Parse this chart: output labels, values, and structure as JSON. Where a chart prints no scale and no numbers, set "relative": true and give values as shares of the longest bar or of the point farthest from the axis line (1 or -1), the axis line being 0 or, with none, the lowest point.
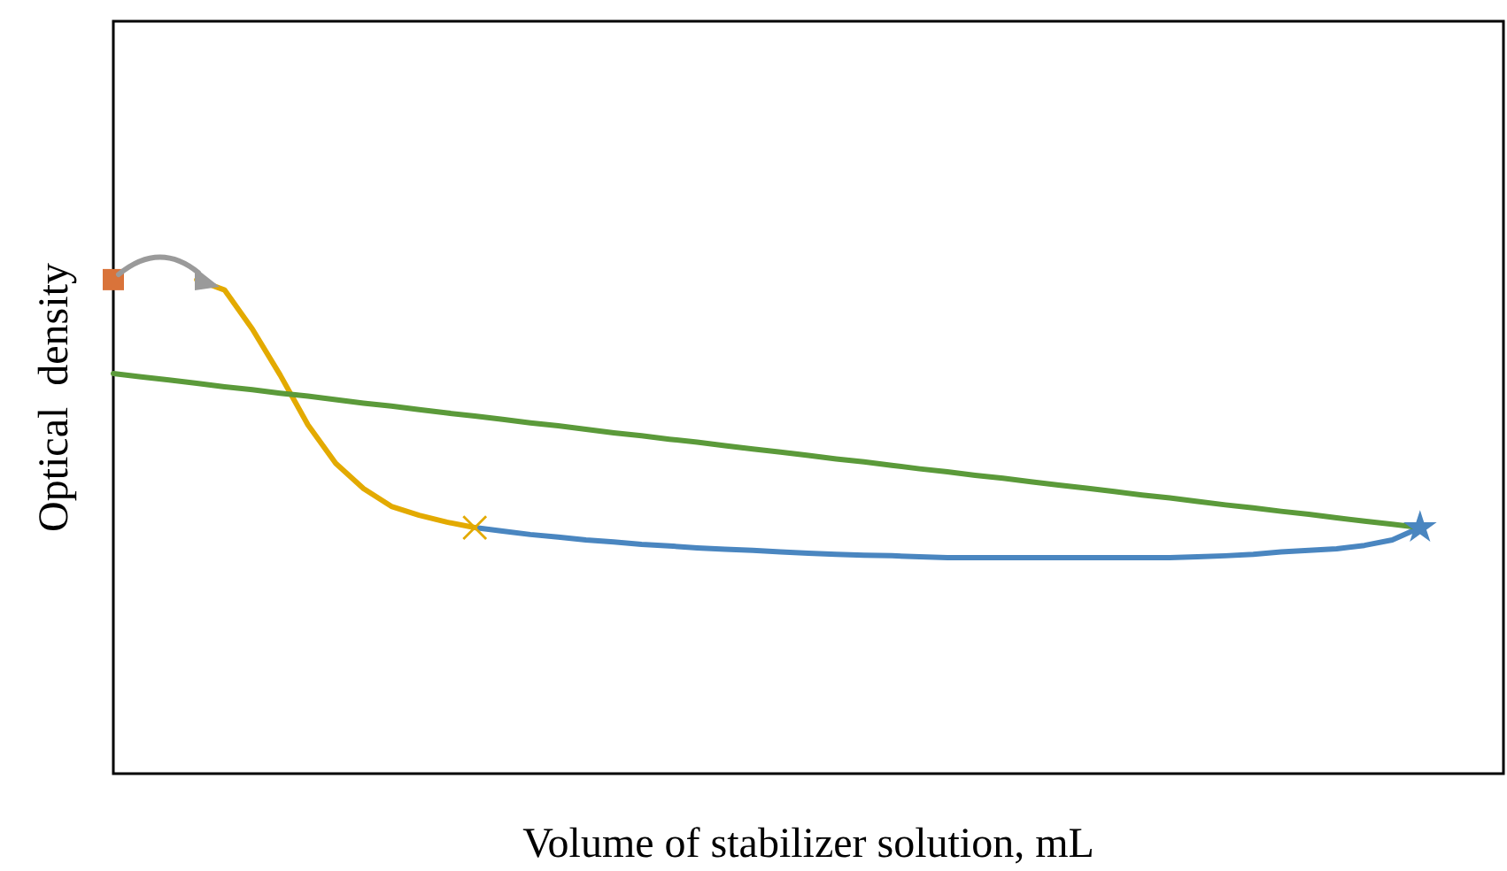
{
  "chart_data": {
    "type": "line",
    "relative": true,
    "xlabel": "Volume of stabilizer solution, mL",
    "ylabel": "Optical  density",
    "categories": [
      null,
      null,
      null,
      null,
      null,
      null,
      null,
      null,
      null,
      null,
      null,
      null,
      null,
      null,
      null,
      null,
      null,
      null,
      null,
      null,
      null,
      null,
      null,
      null,
      null,
      null,
      null,
      null,
      null,
      null,
      null,
      null,
      null,
      null,
      null,
      null,
      null,
      null,
      null,
      null,
      null,
      null,
      null,
      null,
      null,
      null,
      null,
      null,
      null,
      null,
      null
    ],
    "series": [
      {
        "color": "#e3aa00",
        "marker": "none",
        "values": [
          null,
          null,
          null,
          1,
          0.979,
          0.9,
          0.807,
          0.706,
          0.628,
          0.577,
          0.541,
          0.523,
          0.509,
          0.498,
          null,
          null,
          null,
          null,
          null,
          null,
          null,
          null,
          null,
          null,
          null,
          null,
          null,
          null,
          null,
          null,
          null,
          null,
          null,
          null,
          null,
          null,
          null,
          null,
          null,
          null,
          null,
          null,
          null,
          null,
          null,
          null,
          null,
          null,
          null,
          null,
          null
        ]
      },
      {
        "color": "#4a86c0",
        "marker": "none",
        "values": [
          null,
          null,
          null,
          null,
          null,
          null,
          null,
          null,
          null,
          null,
          null,
          null,
          null,
          0.498,
          0.491,
          0.484,
          0.479,
          0.473,
          0.469,
          0.464,
          0.461,
          0.457,
          0.454,
          0.452,
          0.449,
          0.446,
          0.444,
          0.442,
          0.441,
          0.439,
          0.437,
          0.437,
          0.437,
          0.437,
          0.437,
          0.437,
          0.437,
          0.437,
          0.437,
          0.439,
          0.441,
          0.444,
          0.449,
          0.452,
          0.455,
          0.462,
          0.473,
          0.498,
          null,
          null,
          null
        ]
      },
      {
        "color": "#5b9a3a",
        "marker": "none",
        "values": [
          0.81,
          0.803,
          0.797,
          0.79,
          0.783,
          0.777,
          0.77,
          0.764,
          0.757,
          0.75,
          0.744,
          0.737,
          0.73,
          0.724,
          0.717,
          0.71,
          0.704,
          0.697,
          0.69,
          0.684,
          0.677,
          0.671,
          0.664,
          0.657,
          0.651,
          0.644,
          0.637,
          0.631,
          0.624,
          0.617,
          0.611,
          0.604,
          0.598,
          0.591,
          0.584,
          0.578,
          0.571,
          0.564,
          0.558,
          0.551,
          0.544,
          0.538,
          0.531,
          0.525,
          0.518,
          0.511,
          0.505,
          0.498,
          null,
          null,
          null
        ]
      },
      {
        "color": "#d9733a",
        "marker": "square",
        "values": [
          1,
          null,
          null,
          null,
          null,
          null,
          null,
          null,
          null,
          null,
          null,
          null,
          null,
          null,
          null,
          null,
          null,
          null,
          null,
          null,
          null,
          null,
          null,
          null,
          null,
          null,
          null,
          null,
          null,
          null,
          null,
          null,
          null,
          null,
          null,
          null,
          null,
          null,
          null,
          null,
          null,
          null,
          null,
          null,
          null,
          null,
          null,
          null,
          null,
          null,
          null
        ]
      },
      {
        "color": "#e3aa00",
        "marker": "cross",
        "values": [
          null,
          null,
          null,
          null,
          null,
          null,
          null,
          null,
          null,
          null,
          null,
          null,
          null,
          0.498,
          null,
          null,
          null,
          null,
          null,
          null,
          null,
          null,
          null,
          null,
          null,
          null,
          null,
          null,
          null,
          null,
          null,
          null,
          null,
          null,
          null,
          null,
          null,
          null,
          null,
          null,
          null,
          null,
          null,
          null,
          null,
          null,
          null,
          null,
          null,
          null,
          null
        ]
      },
      {
        "color": "#4a86c0",
        "marker": "star",
        "values": [
          null,
          null,
          null,
          null,
          null,
          null,
          null,
          null,
          null,
          null,
          null,
          null,
          null,
          null,
          null,
          null,
          null,
          null,
          null,
          null,
          null,
          null,
          null,
          null,
          null,
          null,
          null,
          null,
          null,
          null,
          null,
          null,
          null,
          null,
          null,
          null,
          null,
          null,
          null,
          null,
          null,
          null,
          null,
          null,
          null,
          null,
          null,
          0.498,
          null,
          null,
          null
        ]
      }
    ]
  }
}
